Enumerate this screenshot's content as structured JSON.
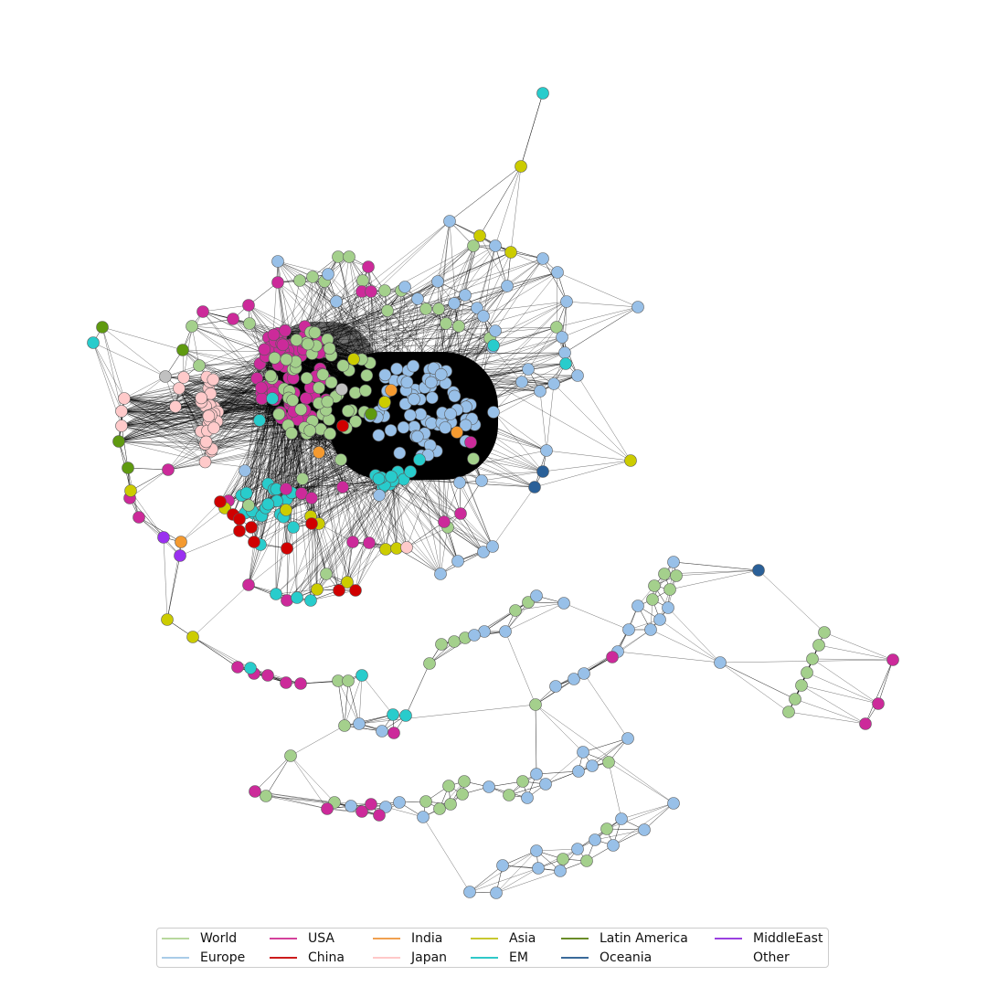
{
  "legend": {
    "items": [
      {
        "label": "World",
        "color": "#b8d89e"
      },
      {
        "label": "Europe",
        "color": "#a9cce8"
      },
      {
        "label": "USA",
        "color": "#d4429c"
      },
      {
        "label": "China",
        "color": "#cc1b1b"
      },
      {
        "label": "India",
        "color": "#f0a050"
      },
      {
        "label": "Japan",
        "color": "#ffc8c8"
      },
      {
        "label": "Asia",
        "color": "#c8c830"
      },
      {
        "label": "EM",
        "color": "#30c8c8"
      },
      {
        "label": "Latin America",
        "color": "#6a8c28"
      },
      {
        "label": "Oceania",
        "color": "#3a6a9a"
      },
      {
        "label": "MiddleEast",
        "color": "#9a40e0"
      },
      {
        "label": "Other",
        "color": "#ffffff"
      }
    ]
  },
  "node_colors": {
    "World": "#a4d08c",
    "Europe": "#98c0e8",
    "USA": "#cc2a9a",
    "China": "#d00000",
    "India": "#f49a30",
    "Japan": "#ffcaca",
    "Asia": "#cccc00",
    "EM": "#28cccc",
    "Latin America": "#5f9a10",
    "Oceania": "#2a6098",
    "MiddleEast": "#9a30f0",
    "Other": "#c0c0c0"
  }
}
